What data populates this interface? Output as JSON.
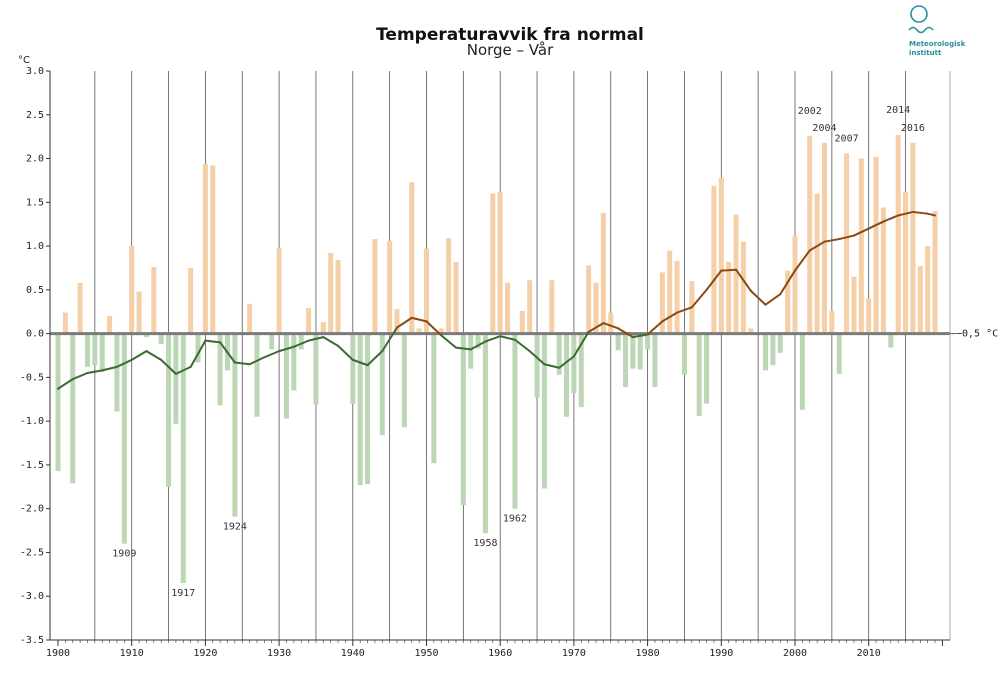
{
  "chart_data": {
    "type": "bar",
    "title": "Temperaturavvik fra normal",
    "subtitle": "Norge – Vår",
    "ylabel": "°C",
    "ylim": [
      -3.5,
      3.0
    ],
    "xlim": [
      1900,
      2020
    ],
    "yticks": [
      "3.0",
      "2.5",
      "2.0",
      "1.5",
      "1.0",
      "0.5",
      "0.0",
      "-0.5",
      "-1.0",
      "-1.5",
      "-2.0",
      "-2.5",
      "-3.0",
      "-3.5"
    ],
    "xticks": [
      "1900",
      "1910",
      "1920",
      "1930",
      "1940",
      "1950",
      "1960",
      "1970",
      "1980",
      "1990",
      "2000",
      "2010"
    ],
    "reference_label": "−0,5 °C",
    "colors": {
      "positive": "#f4cfa8",
      "negative": "#bcd7b6",
      "smooth_positive": "#8a4a12",
      "smooth_negative": "#3a6b30",
      "zero_line": "#7a7a7a",
      "grid": "#555555"
    },
    "series": [
      {
        "name": "Temperaturavvik",
        "x": [
          1900,
          1901,
          1902,
          1903,
          1904,
          1905,
          1906,
          1907,
          1908,
          1909,
          1910,
          1911,
          1912,
          1913,
          1914,
          1915,
          1916,
          1917,
          1918,
          1919,
          1920,
          1921,
          1922,
          1923,
          1924,
          1925,
          1926,
          1927,
          1928,
          1929,
          1930,
          1931,
          1932,
          1933,
          1934,
          1935,
          1936,
          1937,
          1938,
          1939,
          1940,
          1941,
          1942,
          1943,
          1944,
          1945,
          1946,
          1947,
          1948,
          1949,
          1950,
          1951,
          1952,
          1953,
          1954,
          1955,
          1956,
          1957,
          1958,
          1959,
          1960,
          1961,
          1962,
          1963,
          1964,
          1965,
          1966,
          1967,
          1968,
          1969,
          1970,
          1971,
          1972,
          1973,
          1974,
          1975,
          1976,
          1977,
          1978,
          1979,
          1980,
          1981,
          1982,
          1983,
          1984,
          1985,
          1986,
          1987,
          1988,
          1989,
          1990,
          1991,
          1992,
          1993,
          1994,
          1995,
          1996,
          1997,
          1998,
          1999,
          2000,
          2001,
          2002,
          2003,
          2004,
          2005,
          2006,
          2007,
          2008,
          2009,
          2010,
          2011,
          2012,
          2013,
          2014,
          2015,
          2016,
          2017,
          2018,
          2019
        ],
        "values": [
          -1.57,
          0.24,
          -1.71,
          0.58,
          -0.38,
          -0.36,
          -0.44,
          0.2,
          -0.89,
          -2.4,
          1.0,
          0.48,
          -0.04,
          0.76,
          -0.12,
          -1.75,
          -1.03,
          -2.85,
          0.75,
          -0.33,
          1.94,
          1.92,
          -0.82,
          -0.42,
          -2.09,
          0.0,
          0.34,
          -0.95,
          0.0,
          -0.18,
          0.98,
          -0.97,
          -0.65,
          -0.18,
          0.29,
          -0.81,
          0.13,
          0.92,
          0.84,
          0.0,
          -0.8,
          -1.73,
          -1.72,
          1.08,
          -1.16,
          1.06,
          0.28,
          -1.07,
          1.73,
          0.06,
          0.97,
          -1.48,
          0.06,
          1.09,
          0.82,
          -1.96,
          -0.4,
          -0.17,
          -2.28,
          1.6,
          1.62,
          0.58,
          -2.0,
          0.26,
          0.61,
          -0.73,
          -1.77,
          0.61,
          -0.47,
          -0.95,
          -0.68,
          -0.84,
          0.78,
          0.58,
          1.38,
          0.24,
          -0.19,
          -0.61,
          -0.4,
          -0.41,
          -0.18,
          -0.61,
          0.7,
          0.95,
          0.83,
          -0.47,
          0.6,
          -0.94,
          -0.8,
          1.69,
          1.78,
          0.82,
          1.36,
          1.05,
          0.06,
          0.0,
          -0.42,
          -0.36,
          -0.22,
          0.72,
          1.12,
          -0.87,
          2.26,
          1.6,
          2.18,
          0.26,
          -0.46,
          2.06,
          0.65,
          2.0,
          0.4,
          2.02,
          1.44,
          -0.16,
          2.27,
          1.62,
          2.18,
          0.77,
          1.0,
          1.4
        ]
      }
    ],
    "smoothed": {
      "name": "Glattet kurve",
      "x": [
        1900,
        1902,
        1904,
        1906,
        1908,
        1910,
        1912,
        1914,
        1916,
        1918,
        1920,
        1922,
        1924,
        1926,
        1928,
        1930,
        1932,
        1934,
        1936,
        1938,
        1940,
        1942,
        1944,
        1946,
        1948,
        1950,
        1952,
        1954,
        1956,
        1958,
        1960,
        1962,
        1964,
        1966,
        1968,
        1970,
        1972,
        1974,
        1976,
        1978,
        1980,
        1982,
        1984,
        1986,
        1988,
        1990,
        1992,
        1994,
        1996,
        1998,
        2000,
        2002,
        2004,
        2006,
        2008,
        2010,
        2012,
        2014,
        2016,
        2018,
        2019
      ],
      "values": [
        -0.63,
        -0.52,
        -0.45,
        -0.42,
        -0.38,
        -0.3,
        -0.2,
        -0.3,
        -0.46,
        -0.38,
        -0.08,
        -0.1,
        -0.33,
        -0.35,
        -0.27,
        -0.2,
        -0.15,
        -0.08,
        -0.04,
        -0.14,
        -0.3,
        -0.36,
        -0.2,
        0.07,
        0.18,
        0.14,
        -0.02,
        -0.16,
        -0.18,
        -0.09,
        -0.03,
        -0.07,
        -0.2,
        -0.35,
        -0.39,
        -0.26,
        0.02,
        0.12,
        0.06,
        -0.04,
        -0.01,
        0.14,
        0.24,
        0.3,
        0.5,
        0.72,
        0.73,
        0.49,
        0.33,
        0.45,
        0.72,
        0.95,
        1.05,
        1.08,
        1.12,
        1.2,
        1.28,
        1.35,
        1.39,
        1.37,
        1.35
      ]
    },
    "annotations": [
      {
        "text": "1909",
        "year": 1909
      },
      {
        "text": "1917",
        "year": 1917
      },
      {
        "text": "1924",
        "year": 1924
      },
      {
        "text": "1958",
        "year": 1958
      },
      {
        "text": "1962",
        "year": 1962
      },
      {
        "text": "2002",
        "year": 2002
      },
      {
        "text": "2004",
        "year": 2004
      },
      {
        "text": "2007",
        "year": 2007
      },
      {
        "text": "2014",
        "year": 2014
      },
      {
        "text": "2016",
        "year": 2016
      }
    ]
  },
  "logo": {
    "line1": "Meteorologisk",
    "line2": "institutt"
  }
}
